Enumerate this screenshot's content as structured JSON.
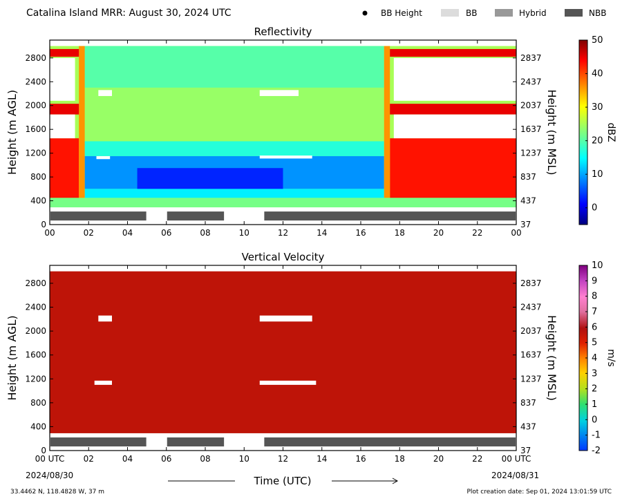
{
  "header": {
    "title": "Catalina Island MRR:  August 30, 2024 UTC",
    "legend": [
      {
        "label": "BB Height",
        "marker": "dot",
        "color": "#000000"
      },
      {
        "label": "BB",
        "marker": "box",
        "color": "#dcdcdc"
      },
      {
        "label": "Hybrid",
        "marker": "box",
        "color": "#999999"
      },
      {
        "label": "NBB",
        "marker": "box",
        "color": "#555555"
      }
    ]
  },
  "footer": {
    "location": "33.4462 N, 118.4828 W, 37 m",
    "time_label": "Time (UTC)",
    "start_date": "2024/08/30",
    "end_date": "2024/08/31",
    "creation": "Plot creation date: Sep 01, 2024 13:01:59 UTC"
  },
  "chart_data": [
    {
      "type": "heatmap",
      "title": "Reflectivity",
      "xlabel": "",
      "ylabel": "Height (m AGL)",
      "ylabel_right": "Height (m MSL)",
      "xlim": [
        0,
        24
      ],
      "ylim": [
        0,
        3100
      ],
      "x_ticks": [
        "00",
        "02",
        "04",
        "06",
        "08",
        "10",
        "12",
        "14",
        "16",
        "18",
        "20",
        "22",
        "00"
      ],
      "y_ticks": [
        0,
        400,
        800,
        1200,
        1600,
        2000,
        2400,
        2800
      ],
      "y_ticks_right": [
        37,
        437,
        837,
        1237,
        1637,
        2037,
        2437,
        2837
      ],
      "colorbar": {
        "label": "dBZ",
        "min": -5,
        "max": 50,
        "ticks": [
          0,
          10,
          20,
          30,
          40,
          50
        ],
        "colormap": "jet"
      },
      "nbb_segments": [
        [
          0,
          5
        ],
        [
          6,
          9
        ],
        [
          11,
          24
        ]
      ],
      "bands": [
        {
          "t0": 0,
          "t1": 24,
          "h0": 290,
          "h1": 3000,
          "dbz": 25
        },
        {
          "t0": 1.7,
          "t1": 17.2,
          "h0": 2300,
          "h1": 3000,
          "dbz": 20
        },
        {
          "t0": 1.7,
          "t1": 17.2,
          "h0": 1400,
          "h1": 2300,
          "dbz": 24
        },
        {
          "t0": 1.7,
          "t1": 17.2,
          "h0": 1150,
          "h1": 1400,
          "dbz": 17
        },
        {
          "t0": 1.8,
          "t1": 17.2,
          "h0": 600,
          "h1": 1150,
          "dbz": 9
        },
        {
          "t0": 4.5,
          "t1": 12,
          "h0": 550,
          "h1": 950,
          "dbz": 3
        },
        {
          "t0": 1.8,
          "t1": 17.2,
          "h0": 300,
          "h1": 600,
          "dbz": 14
        },
        {
          "t0": 0,
          "t1": 1.5,
          "h0": 300,
          "h1": 1450,
          "dbz": 43
        },
        {
          "t0": 17.5,
          "t1": 24,
          "h0": 300,
          "h1": 1450,
          "dbz": 43
        },
        {
          "t0": 1.5,
          "t1": 1.8,
          "h0": 300,
          "h1": 3000,
          "dbz": 36
        },
        {
          "t0": 17.2,
          "t1": 17.5,
          "h0": 300,
          "h1": 3000,
          "dbz": 36
        },
        {
          "t0": 0,
          "t1": 1.5,
          "h0": 1850,
          "h1": 2030,
          "dbz": 45
        },
        {
          "t0": 17.5,
          "t1": 24,
          "h0": 1850,
          "h1": 2030,
          "dbz": 45
        },
        {
          "t0": 0,
          "t1": 1.5,
          "h0": 2820,
          "h1": 2950,
          "dbz": 45
        },
        {
          "t0": 17.5,
          "t1": 24,
          "h0": 2820,
          "h1": 2950,
          "dbz": 45
        },
        {
          "t0": 0,
          "t1": 24,
          "h0": 290,
          "h1": 450,
          "dbz": 22
        }
      ],
      "gaps": [
        {
          "t0": 0,
          "t1": 1.3,
          "h0": 2080,
          "h1": 2800
        },
        {
          "t0": 0,
          "t1": 1.3,
          "h0": 1450,
          "h1": 1850
        },
        {
          "t0": 17.7,
          "t1": 24,
          "h0": 2080,
          "h1": 2800
        },
        {
          "t0": 17.7,
          "t1": 24,
          "h0": 1450,
          "h1": 1850
        },
        {
          "t0": 2.5,
          "t1": 3.2,
          "h0": 2160,
          "h1": 2260
        },
        {
          "t0": 10.8,
          "t1": 12.8,
          "h0": 2160,
          "h1": 2260
        },
        {
          "t0": 2.4,
          "t1": 3.1,
          "h0": 1100,
          "h1": 1150
        },
        {
          "t0": 10.8,
          "t1": 13.5,
          "h0": 1110,
          "h1": 1160
        }
      ]
    },
    {
      "type": "heatmap",
      "title": "Vertical Velocity",
      "xlabel": "Time (UTC)",
      "ylabel": "Height (m AGL)",
      "ylabel_right": "Height (m MSL)",
      "xlim": [
        0,
        24
      ],
      "ylim": [
        0,
        3100
      ],
      "x_ticks": [
        "00 UTC",
        "02",
        "04",
        "06",
        "08",
        "10",
        "12",
        "14",
        "16",
        "18",
        "20",
        "22",
        "00 UTC"
      ],
      "y_ticks": [
        0,
        400,
        800,
        1200,
        1600,
        2000,
        2400,
        2800
      ],
      "y_ticks_right": [
        37,
        437,
        837,
        1237,
        1637,
        2037,
        2437,
        2837
      ],
      "colorbar": {
        "label": "m/s",
        "min": -2,
        "max": 10,
        "ticks": [
          -2,
          -1,
          0,
          1,
          2,
          3,
          4,
          5,
          6,
          7,
          8,
          9,
          10
        ]
      },
      "nbb_segments": [
        [
          0,
          5
        ],
        [
          6,
          9
        ],
        [
          11,
          24
        ]
      ],
      "field_value": 6,
      "gaps": [
        {
          "t0": 2.5,
          "t1": 3.2,
          "h0": 2160,
          "h1": 2260
        },
        {
          "t0": 10.8,
          "t1": 13.5,
          "h0": 2160,
          "h1": 2260
        },
        {
          "t0": 2.3,
          "t1": 3.2,
          "h0": 1100,
          "h1": 1170
        },
        {
          "t0": 10.8,
          "t1": 13.7,
          "h0": 1100,
          "h1": 1170
        }
      ]
    }
  ]
}
